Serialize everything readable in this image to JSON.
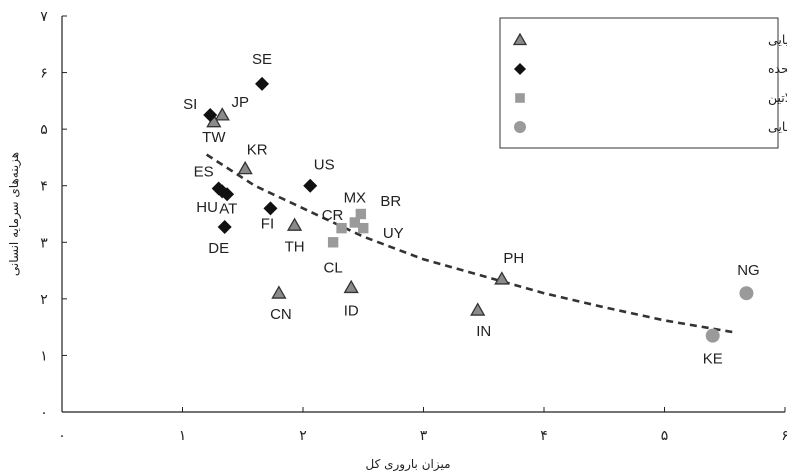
{
  "chart_data": {
    "type": "scatter",
    "xlabel": "میزان باروری کل",
    "ylabel": "هزینه‌های سرمایه انسانی",
    "xlim": [
      0,
      6
    ],
    "ylim": [
      0,
      7
    ],
    "x_ticks": [
      {
        "value": 0,
        "label": "۰"
      },
      {
        "value": 1,
        "label": "۱"
      },
      {
        "value": 2,
        "label": "۲"
      },
      {
        "value": 3,
        "label": "۳"
      },
      {
        "value": 4,
        "label": "۴"
      },
      {
        "value": 5,
        "label": "۵"
      },
      {
        "value": 6,
        "label": "۶"
      }
    ],
    "y_ticks": [
      {
        "value": 0,
        "label": "۰"
      },
      {
        "value": 1,
        "label": "۱"
      },
      {
        "value": 2,
        "label": "۲"
      },
      {
        "value": 3,
        "label": "۳"
      },
      {
        "value": 4,
        "label": "۴"
      },
      {
        "value": 5,
        "label": "۵"
      },
      {
        "value": 6,
        "label": "۶"
      },
      {
        "value": 7,
        "label": "۷"
      }
    ],
    "legend_position": "top-right",
    "series": [
      {
        "name": "اقتصادهای آسیایی",
        "marker": "triangle",
        "color": "#8a8a8a",
        "points": [
          {
            "label": "JP",
            "x": 1.33,
            "y": 5.25
          },
          {
            "label": "TW",
            "x": 1.26,
            "y": 5.13
          },
          {
            "label": "KR",
            "x": 1.52,
            "y": 4.3
          },
          {
            "label": "TH",
            "x": 1.93,
            "y": 3.3
          },
          {
            "label": "CN",
            "x": 1.8,
            "y": 2.1
          },
          {
            "label": "ID",
            "x": 2.4,
            "y": 2.2
          },
          {
            "label": "IN",
            "x": 3.45,
            "y": 1.8
          },
          {
            "label": "PH",
            "x": 3.65,
            "y": 2.35
          }
        ]
      },
      {
        "name": "اقتصادهای اروپایی و ایالات متحده",
        "marker": "diamond",
        "color": "#111111",
        "points": [
          {
            "label": "SE",
            "x": 1.66,
            "y": 5.8
          },
          {
            "label": "SI",
            "x": 1.23,
            "y": 5.25
          },
          {
            "label": "US",
            "x": 2.06,
            "y": 4.0
          },
          {
            "label": "ES",
            "x": 1.3,
            "y": 3.95
          },
          {
            "label": "HU",
            "x": 1.37,
            "y": 3.85
          },
          {
            "label": "AT",
            "x": 1.33,
            "y": 3.9
          },
          {
            "label": "FI",
            "x": 1.73,
            "y": 3.6
          },
          {
            "label": "DE",
            "x": 1.35,
            "y": 3.27
          }
        ]
      },
      {
        "name": "اقتصادهای آمریکای لاتین",
        "marker": "square",
        "color": "#9a9a9a",
        "points": [
          {
            "label": "CR",
            "x": 2.32,
            "y": 3.25
          },
          {
            "label": "MX",
            "x": 2.43,
            "y": 3.35
          },
          {
            "label": "BR",
            "x": 2.48,
            "y": 3.5
          },
          {
            "label": "UY",
            "x": 2.5,
            "y": 3.25
          },
          {
            "label": "CL",
            "x": 2.25,
            "y": 3.0
          }
        ]
      },
      {
        "name": "اقتصادهای آفریقایی",
        "marker": "circle",
        "color": "#9a9a9a",
        "points": [
          {
            "label": "NG",
            "x": 5.68,
            "y": 2.1
          },
          {
            "label": "KE",
            "x": 5.4,
            "y": 1.35
          }
        ]
      }
    ],
    "trend_line": {
      "style": "dashed",
      "color": "#333333",
      "points": [
        [
          1.2,
          4.55
        ],
        [
          1.6,
          4.0
        ],
        [
          2.0,
          3.6
        ],
        [
          2.5,
          3.1
        ],
        [
          3.0,
          2.7
        ],
        [
          3.5,
          2.4
        ],
        [
          4.0,
          2.1
        ],
        [
          4.5,
          1.85
        ],
        [
          5.0,
          1.62
        ],
        [
          5.6,
          1.4
        ]
      ]
    }
  }
}
